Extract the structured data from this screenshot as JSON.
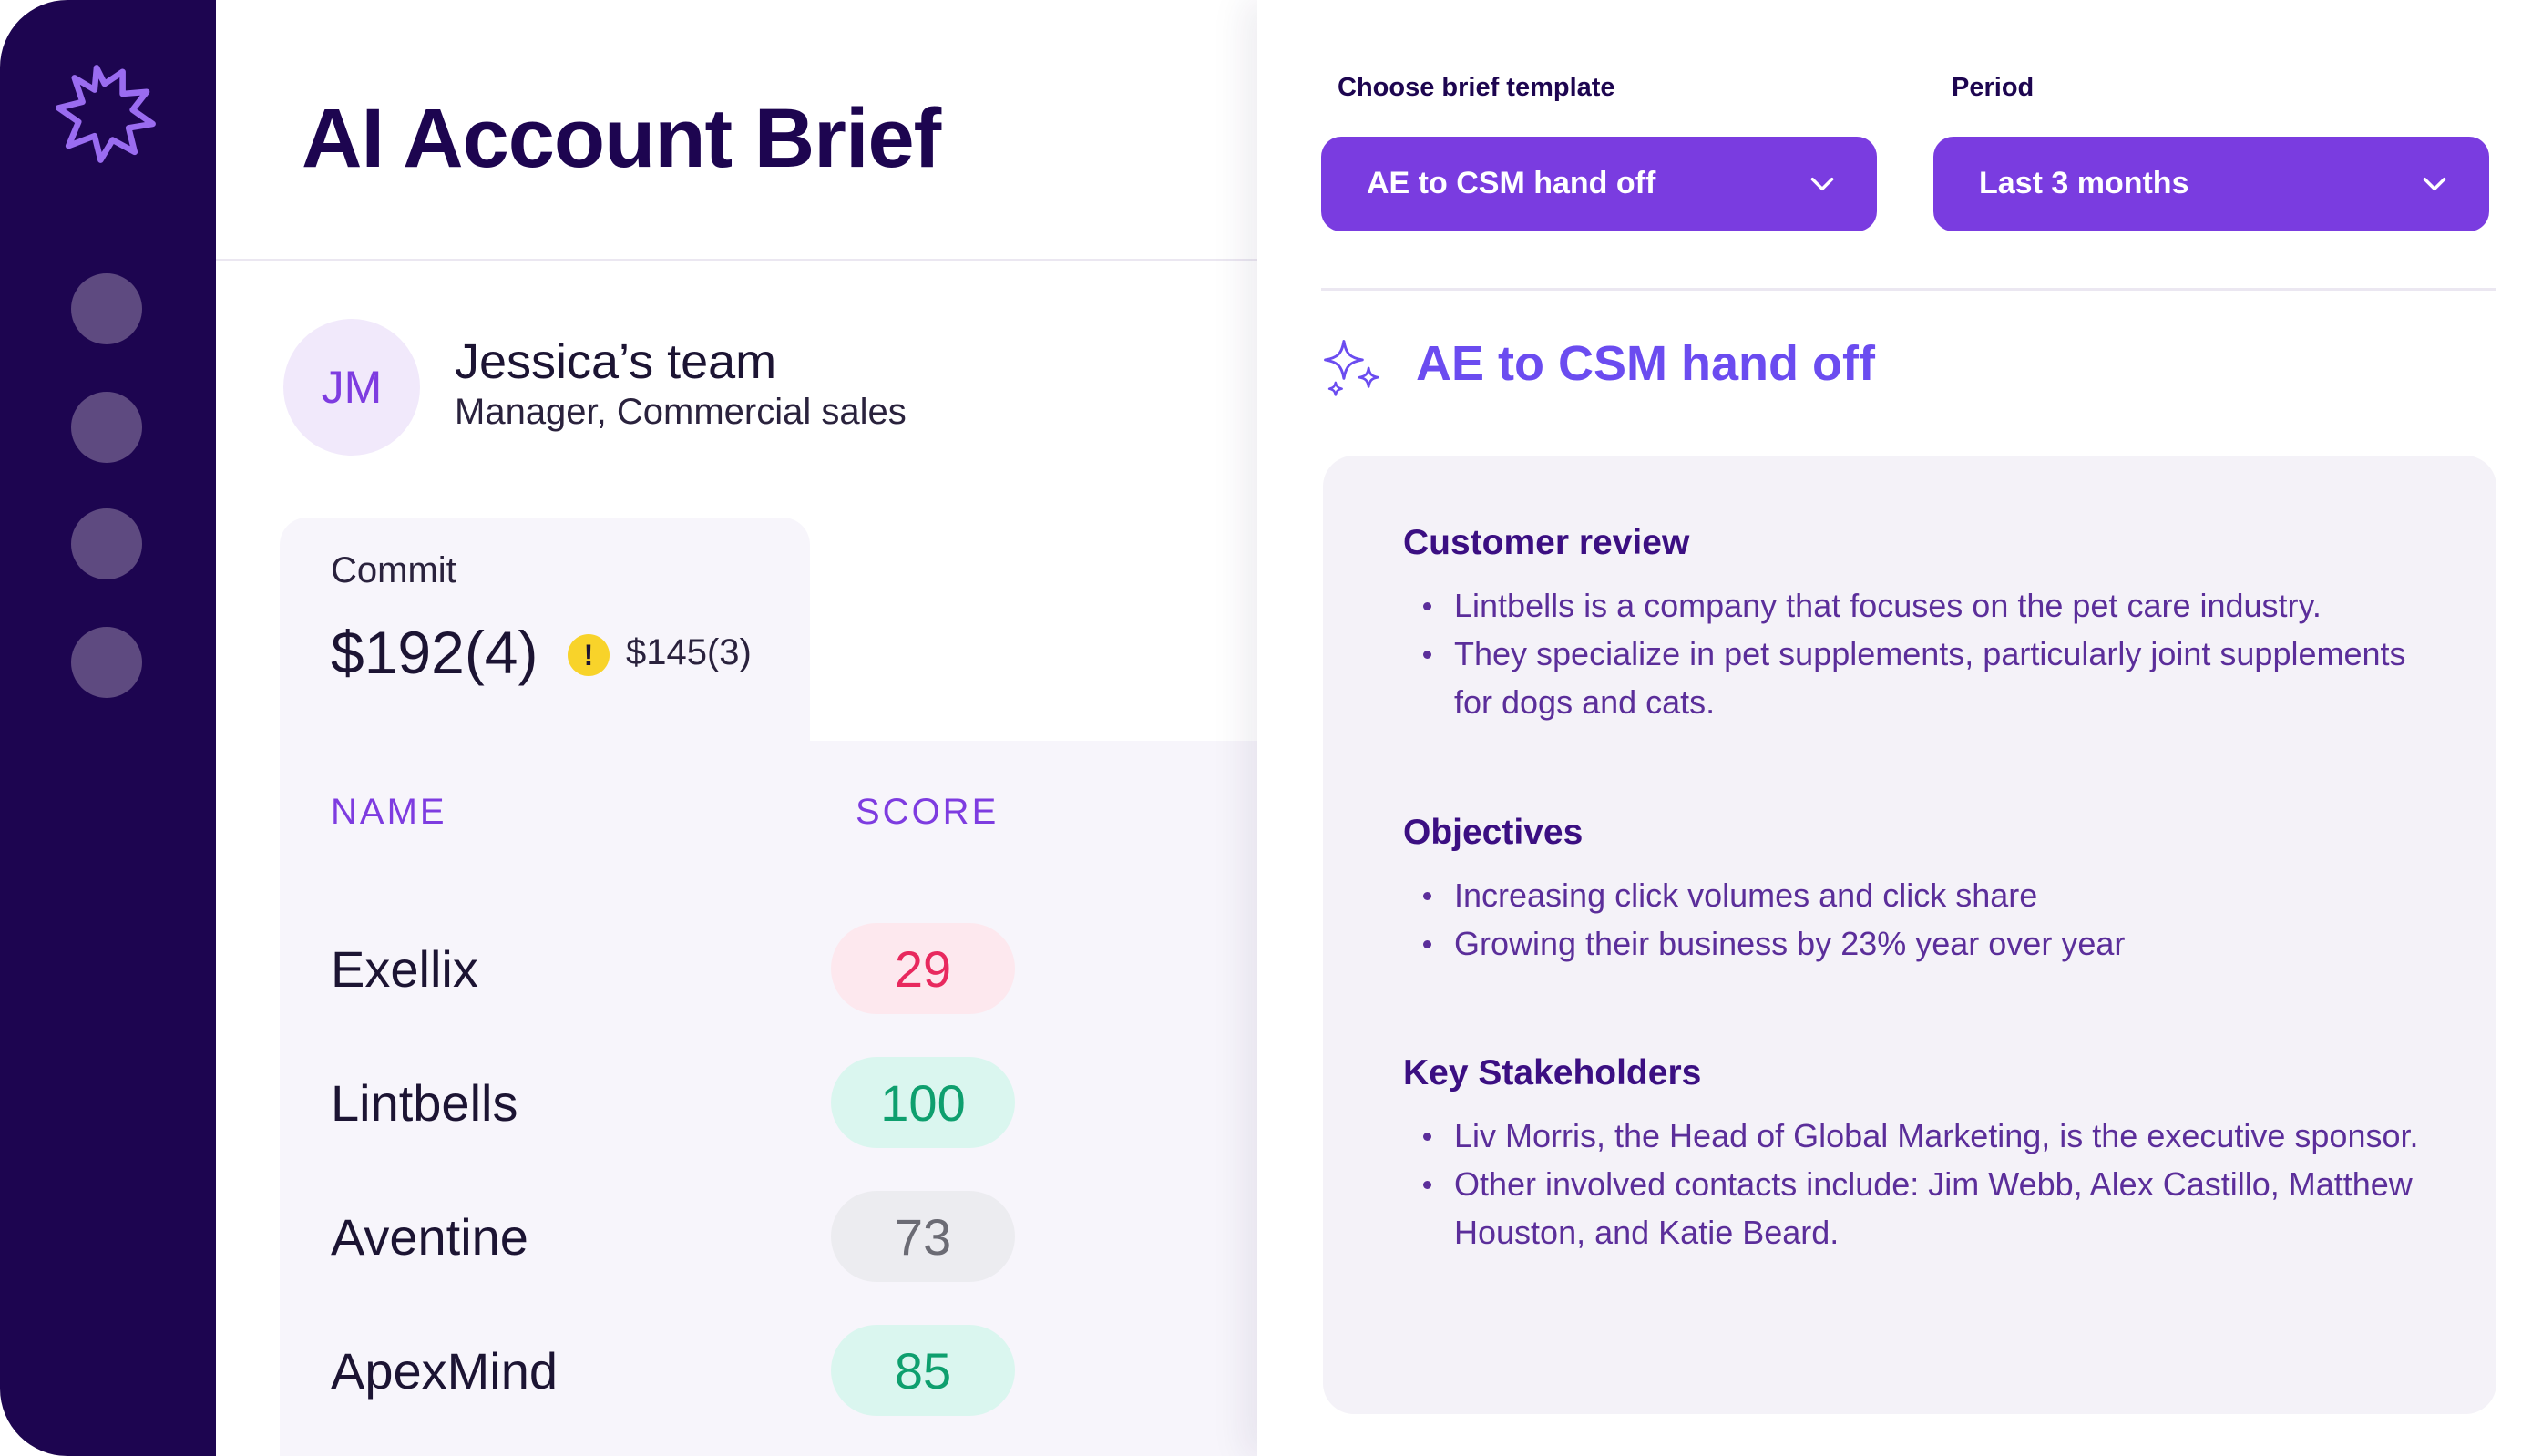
{
  "app": {
    "title": "AI Account Brief",
    "nav_items": [
      "nav-item-1",
      "nav-item-2",
      "nav-item-3",
      "nav-item-4"
    ]
  },
  "team": {
    "initials": "JM",
    "name": "Jessica’s team",
    "role": "Manager, Commercial sales"
  },
  "commit": {
    "label": "Commit",
    "value": "$192(4)",
    "warning_icon": "!",
    "secondary_value": "$145(3)"
  },
  "table": {
    "columns": {
      "name": "NAME",
      "score": "SCORE"
    },
    "rows": [
      {
        "name": "Exellix",
        "score": "29",
        "status": "low",
        "text_color": "#e8295e",
        "bg_color": "#fde8ee"
      },
      {
        "name": "Lintbells",
        "score": "100",
        "status": "high",
        "text_color": "#0e9f6e",
        "bg_color": "#daf6ef"
      },
      {
        "name": "Aventine",
        "score": "73",
        "status": "neutral",
        "text_color": "#6b6b74",
        "bg_color": "#ececf0"
      },
      {
        "name": "ApexMind",
        "score": "85",
        "status": "high",
        "text_color": "#0e9f6e",
        "bg_color": "#daf6ef"
      }
    ]
  },
  "controls": {
    "template_label": "Choose brief template",
    "template_value": "AE to CSM hand off",
    "period_label": "Period",
    "period_value": "Last 3 months"
  },
  "brief": {
    "title": "AE to CSM hand off",
    "sections": [
      {
        "title": "Customer review",
        "bullets": [
          "Lintbells is a company that focuses on the pet care industry.",
          "They specialize in pet supplements, particularly joint supplements for dogs and cats."
        ]
      },
      {
        "title": "Objectives",
        "bullets": [
          "Increasing click volumes and click share",
          "Growing their business by 23% year over year"
        ]
      },
      {
        "title": "Key Stakeholders",
        "bullets": [
          "Liv Morris, the Head of Global Marketing, is the executive sponsor.",
          "Other involved contacts include: Jim Webb, Alex Castillo, Matthew Houston, and Katie Beard."
        ]
      }
    ]
  },
  "colors": {
    "sidebar": "#1d0550",
    "accent": "#7a3ce0",
    "brief_title": "#6b4cf0",
    "warning": "#f8d32a"
  },
  "icons": {
    "logo": "starburst-logo-icon",
    "chevron": "chevron-down-icon",
    "sparkle": "sparkle-icon",
    "warning": "warning-icon"
  }
}
